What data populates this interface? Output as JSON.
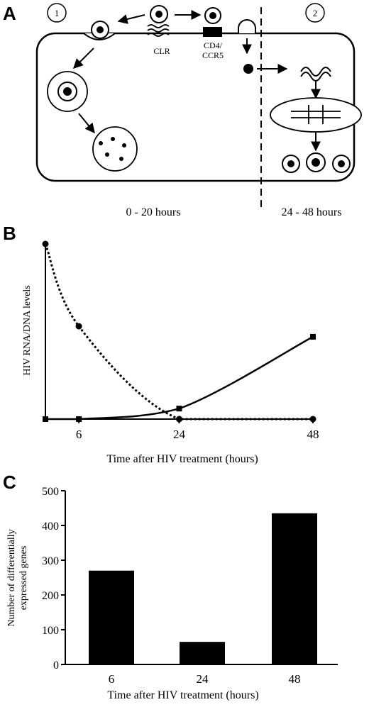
{
  "panel_a": {
    "letter": "A",
    "circle1": "1",
    "circle2": "2",
    "clr_label": "CLR",
    "cd4_label_line1": "CD4/",
    "cd4_label_line2": "CCR5",
    "time_left": "0 - 20 hours",
    "time_right": "24 - 48 hours"
  },
  "panel_b": {
    "letter": "B",
    "chart_data": {
      "type": "line",
      "xlabel": "Time after HIV treatment (hours)",
      "ylabel": "HIV RNA/DNA levels",
      "x_ticks": [
        6,
        24,
        48
      ],
      "series": [
        {
          "style": "dotted",
          "marker": "circle",
          "x": [
            0,
            6,
            24,
            48
          ],
          "y": [
            100,
            53,
            0,
            0
          ]
        },
        {
          "style": "solid",
          "marker": "square",
          "x": [
            0,
            6,
            24,
            48
          ],
          "y": [
            0,
            0,
            6,
            47
          ]
        }
      ]
    }
  },
  "panel_c": {
    "letter": "C",
    "chart_data": {
      "type": "bar",
      "categories": [
        "6",
        "24",
        "48"
      ],
      "values": [
        270,
        65,
        435
      ],
      "ylim": [
        0,
        500
      ],
      "y_ticks": [
        0,
        100,
        200,
        300,
        400,
        500
      ],
      "xlabel": "Time after HIV treatment (hours)",
      "ylabel_line1": "Number of differentially",
      "ylabel_line2": "expressed genes"
    }
  }
}
